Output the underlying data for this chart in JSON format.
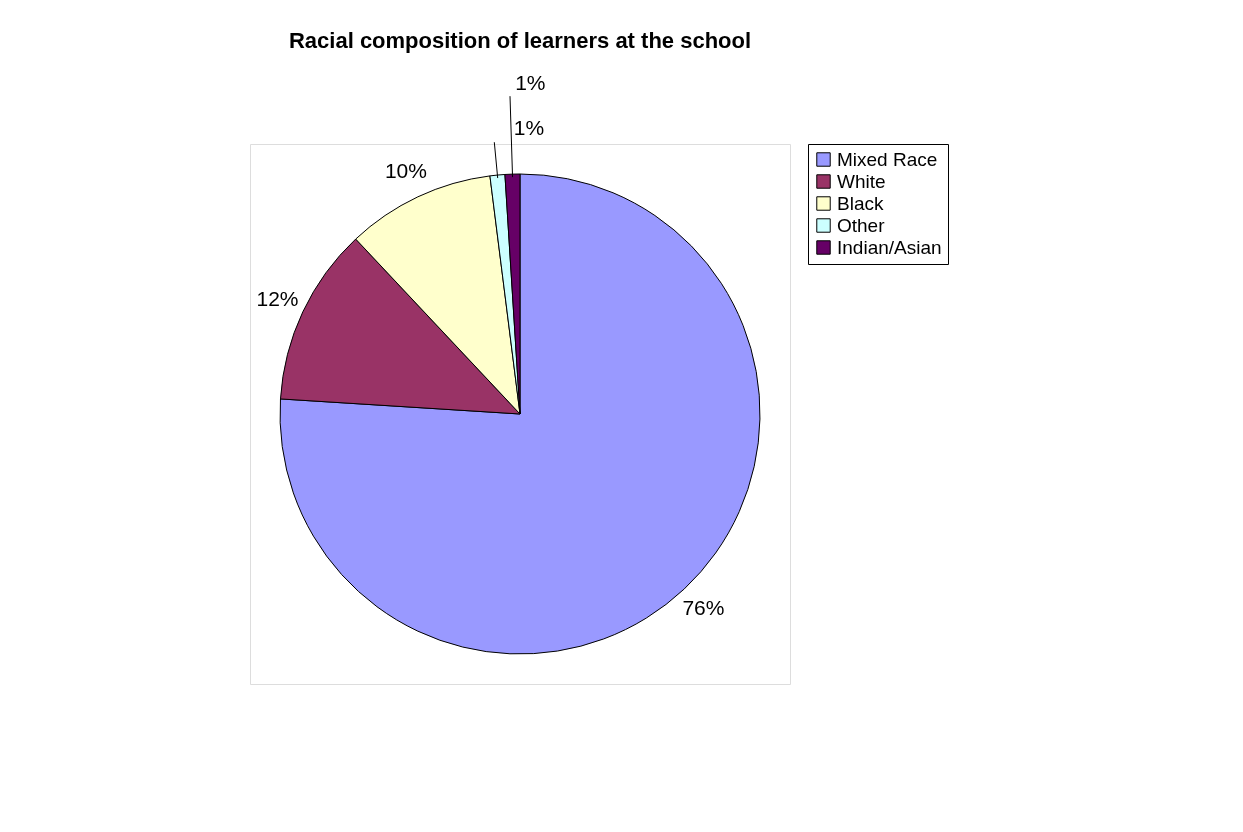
{
  "chart_data": {
    "type": "pie",
    "title": "Racial composition of learners at the school",
    "categories": [
      "Mixed Race",
      "White",
      "Black",
      "Other",
      "Indian/Asian"
    ],
    "values": [
      76,
      12,
      10,
      1,
      1
    ],
    "colors": [
      "#9999ff",
      "#993366",
      "#ffffcc",
      "#ccffff",
      "#660066"
    ],
    "value_labels": [
      "76%",
      "12%",
      "10%",
      "1%",
      "1%"
    ],
    "legend": "right"
  }
}
